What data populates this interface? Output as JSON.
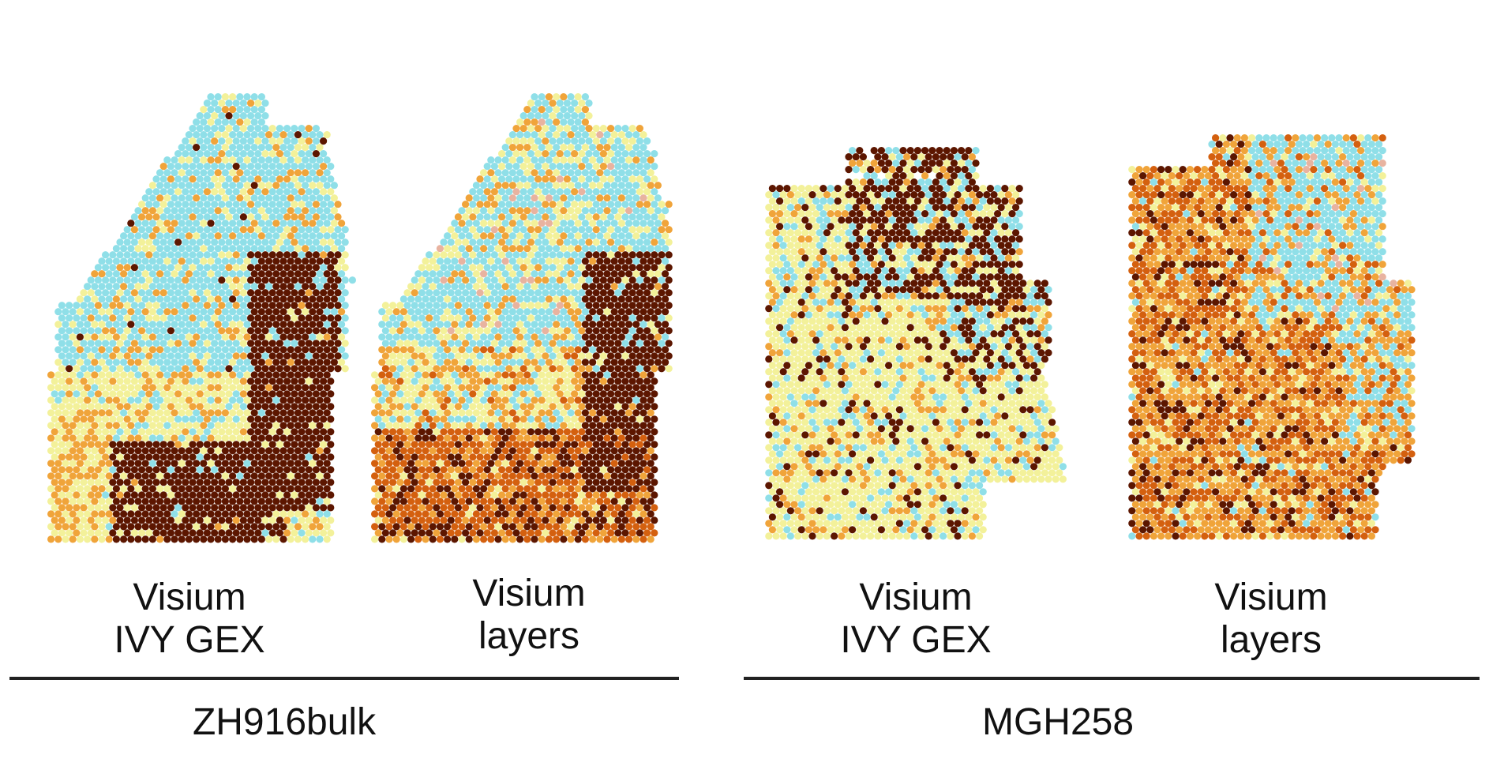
{
  "palette": {
    "cyan": "#8fdfe8",
    "pale_yellow": "#f3f19a",
    "orange": "#f0a43a",
    "dark_orange": "#d4600f",
    "dark_brown": "#5c1600",
    "pink": "#e8b3a0"
  },
  "groups": [
    {
      "sample": "ZH916bulk",
      "panels": [
        {
          "caption_line1": "Visium",
          "caption_line2": "IVY GEX"
        },
        {
          "caption_line1": "Visium",
          "caption_line2": "layers"
        }
      ]
    },
    {
      "sample": "MGH258",
      "panels": [
        {
          "caption_line1": "Visium",
          "caption_line2": "IVY GEX"
        },
        {
          "caption_line1": "Visium",
          "caption_line2": "layers"
        }
      ]
    }
  ]
}
